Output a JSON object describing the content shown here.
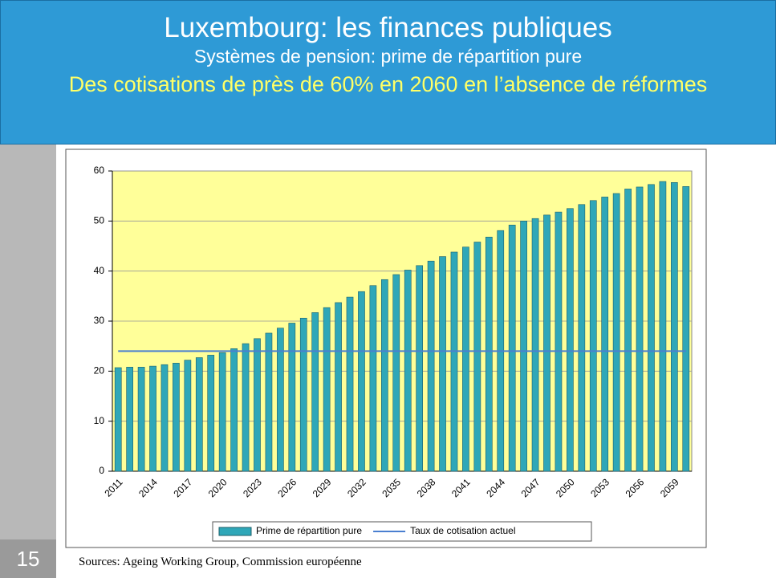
{
  "slide": {
    "number": "15",
    "sources": "Sources: Ageing Working Group, Commission européenne"
  },
  "chart_data": {
    "type": "bar",
    "title": "Luxembourg: les finances publiques",
    "subtitle": "Systèmes de pension: prime de répartition pure",
    "annotation": "Des cotisations de près de 60% en 2060 en l’absence de réformes",
    "categories": [
      "2011",
      null,
      null,
      "2014",
      null,
      null,
      "2017",
      null,
      null,
      "2020",
      null,
      null,
      "2023",
      null,
      null,
      "2026",
      null,
      null,
      "2029",
      null,
      null,
      "2032",
      null,
      null,
      "2035",
      null,
      null,
      "2038",
      null,
      null,
      "2041",
      null,
      null,
      "2044",
      null,
      null,
      "2047",
      null,
      null,
      "2050",
      null,
      null,
      "2053",
      null,
      null,
      "2056",
      null,
      null,
      "2059",
      null
    ],
    "series": [
      {
        "name": "Prime de répartition pure",
        "type": "bar",
        "color": "#2fa7b8",
        "values": [
          20.7,
          20.8,
          20.8,
          21.0,
          21.3,
          21.6,
          22.2,
          22.7,
          23.2,
          23.7,
          24.5,
          25.5,
          26.5,
          27.6,
          28.6,
          29.6,
          30.6,
          31.7,
          32.7,
          33.7,
          34.8,
          35.9,
          37.1,
          38.3,
          39.3,
          40.2,
          41.1,
          42.0,
          42.9,
          43.8,
          44.8,
          45.8,
          46.8,
          48.1,
          49.2,
          50.0,
          50.5,
          51.2,
          51.8,
          52.5,
          53.3,
          54.1,
          54.8,
          55.5,
          56.4,
          56.8,
          57.3,
          57.9,
          57.7,
          56.9
        ]
      },
      {
        "name": "Taux de cotisation actuel",
        "type": "line",
        "color": "#4a7fd0",
        "values": [
          24,
          24,
          24,
          24,
          24,
          24,
          24,
          24,
          24,
          24,
          24,
          24,
          24,
          24,
          24,
          24,
          24,
          24,
          24,
          24,
          24,
          24,
          24,
          24,
          24,
          24,
          24,
          24,
          24,
          24,
          24,
          24,
          24,
          24,
          24,
          24,
          24,
          24,
          24,
          24,
          24,
          24,
          24,
          24,
          24,
          24,
          24,
          24,
          24,
          24
        ]
      }
    ],
    "ylim": [
      0,
      60
    ],
    "yticks": [
      0,
      10,
      20,
      30,
      40,
      50,
      60
    ],
    "grid": true,
    "legend": "bottom",
    "plot_background": "#ffff99"
  }
}
